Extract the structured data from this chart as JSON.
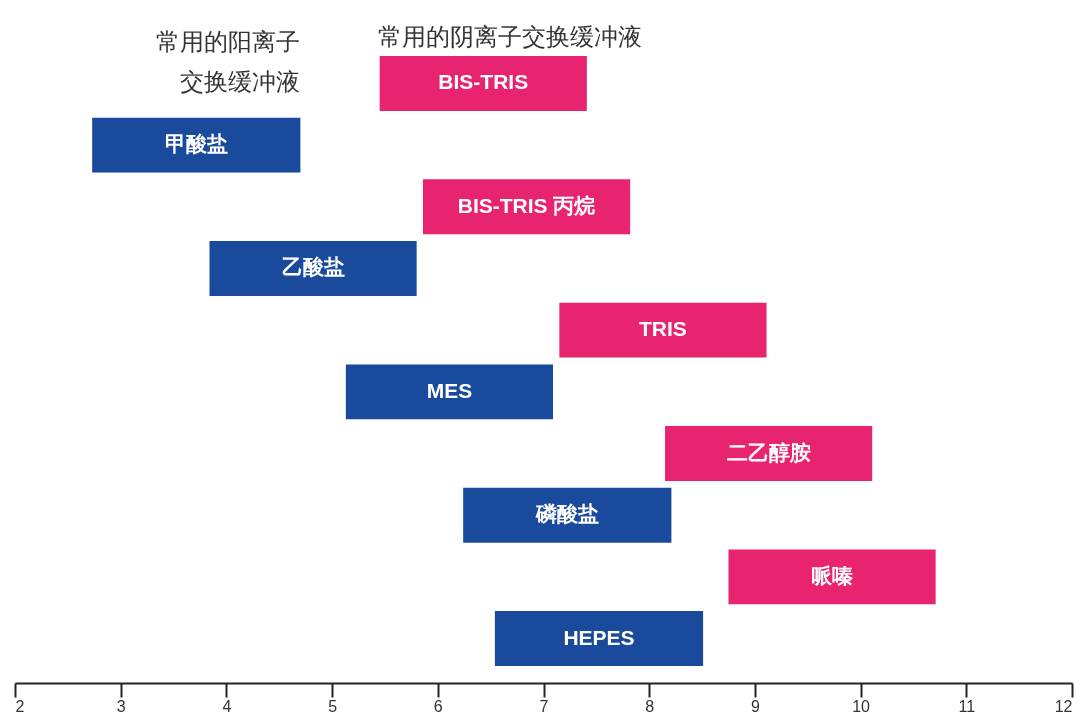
{
  "chart_data": {
    "type": "bar",
    "orientation": "horizontal",
    "tick_labels": "x",
    "categories": [
      "BIS-TRIS",
      "甲酸盐",
      "BIS-TRIS 丙烷",
      "乙酸盐",
      "TRIS",
      "MES",
      "二乙醇胺",
      "磷酸盐",
      "哌嗪",
      "HEPES"
    ],
    "series": [
      {
        "name": "常用的阴离子交换缓冲液",
        "color": "#e8236f",
        "base": [
          5.45,
          null,
          5.86,
          null,
          7.15,
          null,
          8.15,
          null,
          8.75,
          null
        ],
        "values": [
          1.96,
          null,
          1.96,
          null,
          1.96,
          null,
          1.96,
          null,
          1.96,
          null
        ]
      },
      {
        "name": "常用的阳离子交换缓冲液",
        "color": "#1a4a9c",
        "base": [
          null,
          2.73,
          null,
          3.84,
          null,
          5.13,
          null,
          6.24,
          null,
          6.54
        ],
        "values": [
          null,
          1.97,
          null,
          1.96,
          null,
          1.96,
          null,
          1.97,
          null,
          1.97
        ]
      }
    ],
    "xlim": [
      2,
      12
    ],
    "xticks": [
      2,
      3,
      4,
      5,
      6,
      7,
      8,
      9,
      10,
      11,
      12
    ]
  }
}
